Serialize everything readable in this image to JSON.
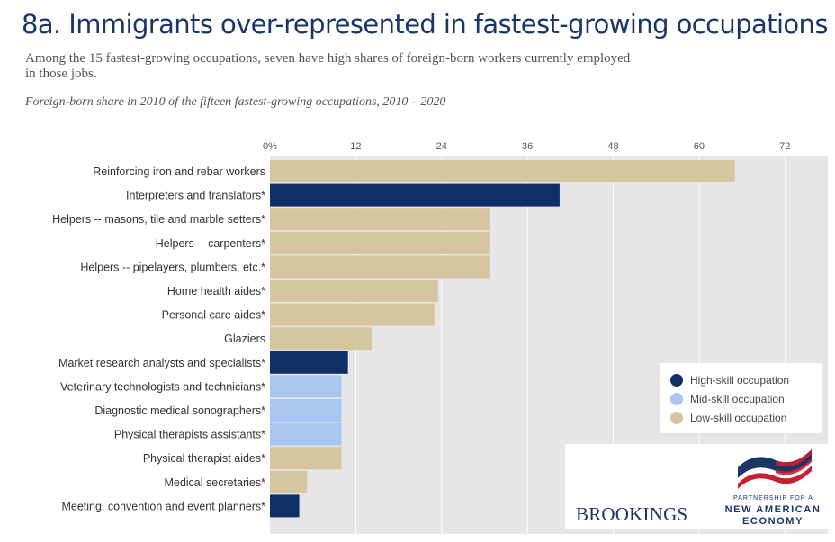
{
  "title": "8a. Immigrants over-represented in fastest-growing occupations",
  "subtitle": "Among the 15 fastest-growing occupations, seven have high shares of foreign-born workers currently employed in those jobs.",
  "caption": "Foreign-born share in 2010 of the fifteen fastest-growing occupations, 2010 – 2020",
  "colors": {
    "high": "#0f2f66",
    "mid": "#a8c6f0",
    "low": "#d6c6a0",
    "plot_bg": "#e6e6e6",
    "grid": "#ffffff"
  },
  "legend": {
    "items": [
      {
        "key": "high",
        "label": "High-skill occupation"
      },
      {
        "key": "mid",
        "label": "Mid-skill occupation"
      },
      {
        "key": "low",
        "label": "Low-skill occupation"
      }
    ]
  },
  "chart_data": {
    "type": "bar",
    "orientation": "horizontal",
    "xlim": [
      0,
      78
    ],
    "xticks": [
      0,
      12,
      24,
      36,
      48,
      60,
      72
    ],
    "xtick_labels": [
      "0%",
      "12",
      "24",
      "36",
      "48",
      "60",
      "72"
    ],
    "grid": true,
    "legend_position": "bottom-right",
    "categories": [
      "Reinforcing iron and rebar workers",
      "Interpreters and translators*",
      "Helpers -- masons, tile and marble setters*",
      "Helpers -- carpenters*",
      "Helpers -- pipelayers, plumbers, etc.*",
      "Home health aides*",
      "Personal care aides*",
      "Glaziers",
      "Market research analysts and specialists*",
      "Veterinary technologists and technicians*",
      "Diagnostic medical sonographers*",
      "Physical therapists assistants*",
      "Physical therapist aides*",
      "Medical secretaries*",
      "Meeting, convention and event planners*"
    ],
    "values": [
      65,
      40.5,
      30.8,
      30.8,
      30.8,
      23.5,
      23,
      14.2,
      10.9,
      10,
      10,
      10,
      10,
      5.2,
      4.1
    ],
    "skill": [
      "low",
      "high",
      "low",
      "low",
      "low",
      "low",
      "low",
      "low",
      "high",
      "mid",
      "mid",
      "mid",
      "low",
      "low",
      "high"
    ]
  },
  "logos": {
    "brookings": "BROOKINGS",
    "pnae_line1": "PARTNERSHIP FOR A",
    "pnae_line2": "NEW AMERICAN",
    "pnae_line3": "ECONOMY"
  }
}
